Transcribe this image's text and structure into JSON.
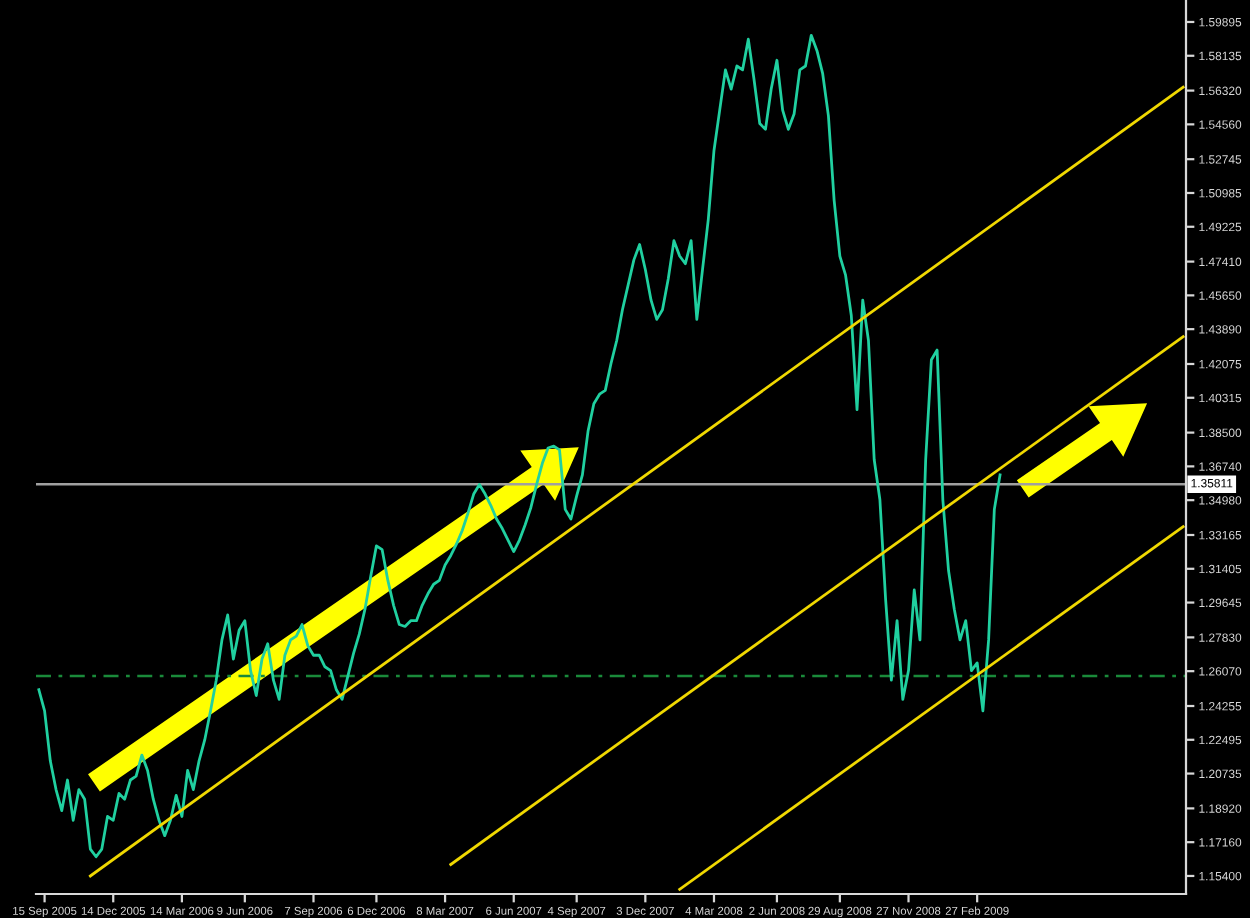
{
  "chart_data": {
    "type": "line",
    "categories": [
      null,
      "15 Sep 2005",
      null,
      null,
      null,
      null,
      null,
      null,
      null,
      null,
      null,
      null,
      null,
      "14 Dec 2005",
      null,
      null,
      null,
      null,
      null,
      null,
      null,
      null,
      null,
      null,
      null,
      "14 Mar 2006",
      null,
      null,
      null,
      null,
      null,
      null,
      null,
      null,
      null,
      null,
      "9 Jun 2006",
      null,
      null,
      null,
      null,
      null,
      null,
      null,
      null,
      null,
      null,
      null,
      "7 Sep 2006",
      null,
      null,
      null,
      null,
      null,
      null,
      null,
      null,
      null,
      null,
      "6 Dec 2006",
      null,
      null,
      null,
      null,
      null,
      null,
      null,
      null,
      null,
      null,
      null,
      "8 Mar 2007",
      null,
      null,
      null,
      null,
      null,
      null,
      null,
      null,
      null,
      null,
      null,
      "6 Jun 2007",
      null,
      null,
      null,
      null,
      null,
      null,
      null,
      null,
      null,
      null,
      "4 Sep 2007",
      null,
      null,
      null,
      null,
      null,
      null,
      null,
      null,
      null,
      null,
      null,
      "3 Dec 2007",
      null,
      null,
      null,
      null,
      null,
      null,
      null,
      null,
      null,
      null,
      null,
      "4 Mar 2008",
      null,
      null,
      null,
      null,
      null,
      null,
      null,
      null,
      null,
      null,
      "2 Jun 2008",
      null,
      null,
      null,
      null,
      null,
      null,
      null,
      null,
      null,
      null,
      "29 Aug 2008",
      null,
      null,
      null,
      null,
      null,
      null,
      null,
      null,
      null,
      null,
      null,
      "27 Nov 2008",
      null,
      null,
      null,
      null,
      null,
      null,
      null,
      null,
      null,
      null,
      null,
      "27 Feb 2009",
      null,
      null,
      null,
      null,
      null,
      null,
      null,
      null,
      null,
      null,
      null,
      null,
      null,
      null,
      null,
      null,
      null,
      null,
      null,
      null,
      null,
      null,
      null,
      null,
      null,
      null,
      null,
      null,
      null,
      null,
      null,
      null,
      null,
      null,
      null,
      null
    ],
    "series": [
      {
        "color": "#20d0a0",
        "values": [
          1.251,
          1.24,
          1.214,
          1.199,
          1.188,
          1.204,
          1.183,
          1.199,
          1.194,
          1.168,
          1.164,
          1.168,
          1.185,
          1.183,
          1.197,
          1.194,
          1.204,
          1.206,
          1.217,
          1.209,
          1.194,
          1.183,
          1.175,
          1.183,
          1.196,
          1.185,
          1.209,
          1.199,
          1.214,
          1.225,
          1.24,
          1.256,
          1.277,
          1.29,
          1.267,
          1.282,
          1.287,
          1.261,
          1.248,
          1.267,
          1.275,
          1.256,
          1.246,
          1.269,
          1.277,
          1.279,
          1.285,
          1.274,
          1.269,
          1.269,
          1.263,
          1.261,
          1.251,
          1.246,
          1.258,
          1.27,
          1.28,
          1.293,
          1.31,
          1.326,
          1.324,
          1.308,
          1.295,
          1.285,
          1.284,
          1.287,
          1.287,
          1.295,
          1.301,
          1.306,
          1.308,
          1.316,
          1.321,
          1.327,
          1.334,
          1.343,
          1.353,
          1.358,
          1.353,
          1.347,
          1.34,
          1.335,
          1.329,
          1.323,
          1.329,
          1.337,
          1.346,
          1.358,
          1.369,
          1.377,
          1.378,
          1.376,
          1.345,
          1.34,
          1.352,
          1.363,
          1.386,
          1.4,
          1.405,
          1.407,
          1.421,
          1.433,
          1.449,
          1.462,
          1.475,
          1.483,
          1.47,
          1.454,
          1.444,
          1.449,
          1.465,
          1.485,
          1.477,
          1.473,
          1.485,
          1.444,
          1.47,
          1.496,
          1.532,
          1.553,
          1.574,
          1.564,
          1.576,
          1.574,
          1.59,
          1.569,
          1.546,
          1.543,
          1.564,
          1.579,
          1.553,
          1.543,
          1.551,
          1.574,
          1.576,
          1.592,
          1.584,
          1.572,
          1.55,
          1.506,
          1.477,
          1.467,
          1.446,
          1.397,
          1.454,
          1.433,
          1.371,
          1.35,
          1.298,
          1.256,
          1.287,
          1.246,
          1.261,
          1.303,
          1.277,
          1.371,
          1.423,
          1.428,
          1.35,
          1.313,
          1.293,
          1.277,
          1.287,
          1.261,
          1.265,
          1.24,
          1.277,
          1.345,
          1.363,
          null,
          null,
          null,
          null,
          null,
          null,
          null,
          null,
          null,
          null,
          null,
          null,
          null,
          null,
          null,
          null,
          null,
          null,
          null,
          null,
          null,
          null,
          null,
          null,
          null,
          null,
          null,
          null,
          null,
          null,
          null,
          null
        ]
      },
      {
        "color": "#f0d800",
        "values": [
          null,
          null,
          null,
          null,
          null,
          null,
          null,
          null,
          null,
          1.154,
          null,
          null,
          null,
          null,
          null,
          null,
          null,
          null,
          null,
          null,
          null,
          null,
          null,
          null,
          null,
          null,
          null,
          null,
          null,
          null,
          null,
          null,
          null,
          null,
          null,
          null,
          null,
          null,
          null,
          null,
          null,
          null,
          null,
          null,
          null,
          null,
          null,
          null,
          null,
          null,
          null,
          null,
          null,
          null,
          null,
          null,
          null,
          null,
          null,
          null,
          null,
          null,
          null,
          null,
          null,
          null,
          null,
          null,
          null,
          null,
          null,
          null,
          null,
          null,
          null,
          null,
          null,
          null,
          null,
          null,
          null,
          null,
          null,
          null,
          null,
          null,
          null,
          null,
          null,
          null,
          null,
          null,
          null,
          null,
          null,
          null,
          null,
          null,
          null,
          null,
          null,
          null,
          null,
          null,
          null,
          null,
          null,
          null,
          null,
          null,
          null,
          null,
          null,
          null,
          null,
          null,
          null,
          null,
          null,
          null,
          null,
          null,
          null,
          null,
          null,
          null,
          null,
          null,
          null,
          null,
          null,
          null,
          null,
          null,
          null,
          null,
          null,
          null,
          null,
          null,
          null,
          null,
          null,
          null,
          null,
          null,
          null,
          null,
          null,
          null,
          null,
          null,
          null,
          null,
          null,
          null,
          null,
          null,
          null,
          null,
          null,
          null,
          null,
          null,
          null,
          null,
          null,
          null,
          null,
          null,
          null,
          null,
          null,
          null,
          null,
          null,
          null,
          null,
          null,
          null,
          null,
          null,
          null,
          null,
          null,
          null,
          null,
          null,
          null,
          null,
          null,
          null,
          null,
          null,
          null,
          null,
          null,
          null,
          null,
          null,
          1.565
        ]
      },
      {
        "color": "#f0d800",
        "values": [
          null,
          null,
          null,
          null,
          null,
          null,
          null,
          null,
          null,
          null,
          null,
          null,
          null,
          null,
          null,
          null,
          null,
          null,
          null,
          null,
          null,
          null,
          null,
          null,
          null,
          null,
          null,
          null,
          null,
          null,
          null,
          null,
          null,
          null,
          null,
          null,
          null,
          null,
          null,
          null,
          null,
          null,
          null,
          null,
          null,
          null,
          null,
          null,
          null,
          null,
          null,
          null,
          null,
          null,
          null,
          null,
          null,
          null,
          null,
          null,
          null,
          null,
          null,
          null,
          null,
          null,
          null,
          null,
          null,
          null,
          null,
          null,
          1.16,
          null,
          null,
          null,
          null,
          null,
          null,
          null,
          null,
          null,
          null,
          null,
          null,
          null,
          null,
          null,
          null,
          null,
          null,
          null,
          null,
          null,
          null,
          null,
          null,
          null,
          null,
          null,
          null,
          null,
          null,
          null,
          null,
          null,
          null,
          null,
          null,
          null,
          null,
          null,
          null,
          null,
          null,
          null,
          null,
          null,
          null,
          null,
          null,
          null,
          null,
          null,
          null,
          null,
          null,
          null,
          null,
          null,
          null,
          null,
          null,
          null,
          null,
          null,
          null,
          null,
          null,
          null,
          null,
          null,
          null,
          null,
          null,
          null,
          null,
          null,
          null,
          null,
          null,
          null,
          null,
          null,
          null,
          null,
          null,
          null,
          null,
          null,
          null,
          null,
          null,
          null,
          null,
          null,
          null,
          null,
          null,
          null,
          null,
          null,
          null,
          null,
          null,
          null,
          null,
          null,
          null,
          null,
          null,
          null,
          null,
          null,
          null,
          null,
          null,
          null,
          null,
          null,
          null,
          null,
          null,
          null,
          null,
          null,
          null,
          null,
          null,
          null,
          1.435
        ]
      },
      {
        "color": "#f0d800",
        "values": [
          null,
          null,
          null,
          null,
          null,
          null,
          null,
          null,
          null,
          null,
          null,
          null,
          null,
          null,
          null,
          null,
          null,
          null,
          null,
          null,
          null,
          null,
          null,
          null,
          null,
          null,
          null,
          null,
          null,
          null,
          null,
          null,
          null,
          null,
          null,
          null,
          null,
          null,
          null,
          null,
          null,
          null,
          null,
          null,
          null,
          null,
          null,
          null,
          null,
          null,
          null,
          null,
          null,
          null,
          null,
          null,
          null,
          null,
          null,
          null,
          null,
          null,
          null,
          null,
          null,
          null,
          null,
          null,
          null,
          null,
          null,
          null,
          null,
          null,
          null,
          null,
          null,
          null,
          null,
          null,
          null,
          null,
          null,
          null,
          null,
          null,
          null,
          null,
          null,
          null,
          null,
          null,
          null,
          null,
          null,
          null,
          null,
          null,
          null,
          null,
          null,
          null,
          null,
          null,
          null,
          null,
          null,
          null,
          null,
          null,
          null,
          null,
          1.147,
          null,
          null,
          null,
          null,
          null,
          null,
          null,
          null,
          null,
          null,
          null,
          null,
          null,
          null,
          null,
          null,
          null,
          null,
          null,
          null,
          null,
          null,
          null,
          null,
          null,
          null,
          null,
          null,
          null,
          null,
          null,
          null,
          null,
          null,
          null,
          null,
          null,
          null,
          null,
          null,
          null,
          null,
          null,
          null,
          null,
          null,
          null,
          null,
          null,
          null,
          null,
          null,
          null,
          null,
          null,
          null,
          null,
          null,
          null,
          null,
          null,
          null,
          null,
          null,
          null,
          null,
          null,
          null,
          null,
          null,
          null,
          null,
          null,
          null,
          null,
          null,
          null,
          null,
          null,
          null,
          null,
          null,
          null,
          null,
          null,
          null,
          null,
          1.336
        ]
      }
    ],
    "ylim": [
      1.1446,
      1.6104
    ],
    "yticks": [
      {
        "value": 1.154,
        "label": "1.15400"
      },
      {
        "value": 1.1716,
        "label": "1.17160"
      },
      {
        "value": 1.1892,
        "label": "1.18920"
      },
      {
        "value": 1.20735,
        "label": "1.20735"
      },
      {
        "value": 1.22495,
        "label": "1.22495"
      },
      {
        "value": 1.24255,
        "label": "1.24255"
      },
      {
        "value": 1.2607,
        "label": "1.26070"
      },
      {
        "value": 1.2783,
        "label": "1.27830"
      },
      {
        "value": 1.29645,
        "label": "1.29645"
      },
      {
        "value": 1.31405,
        "label": "1.31405"
      },
      {
        "value": 1.33165,
        "label": "1.33165"
      },
      {
        "value": 1.3498,
        "label": "1.34980"
      },
      {
        "value": 1.3674,
        "label": "1.36740"
      },
      {
        "value": 1.385,
        "label": "1.38500"
      },
      {
        "value": 1.40315,
        "label": "1.40315"
      },
      {
        "value": 1.42075,
        "label": "1.42075"
      },
      {
        "value": 1.4389,
        "label": "1.43890"
      },
      {
        "value": 1.4565,
        "label": "1.45650"
      },
      {
        "value": 1.4741,
        "label": "1.47410"
      },
      {
        "value": 1.49225,
        "label": "1.49225"
      },
      {
        "value": 1.50985,
        "label": "1.50985"
      },
      {
        "value": 1.52745,
        "label": "1.52745"
      },
      {
        "value": 1.5456,
        "label": "1.54560"
      },
      {
        "value": 1.5632,
        "label": "1.56320"
      },
      {
        "value": 1.58135,
        "label": "1.58135"
      },
      {
        "value": 1.59895,
        "label": "1.59895"
      }
    ],
    "ref_lines": [
      {
        "axis": "y",
        "value": 1.35811,
        "label": "1.35811",
        "color": "#a0a0a0",
        "line_style": "solid"
      },
      {
        "axis": "y",
        "value": 1.2582,
        "color": "#1a8a3a",
        "line_style": "dashdot"
      }
    ]
  }
}
